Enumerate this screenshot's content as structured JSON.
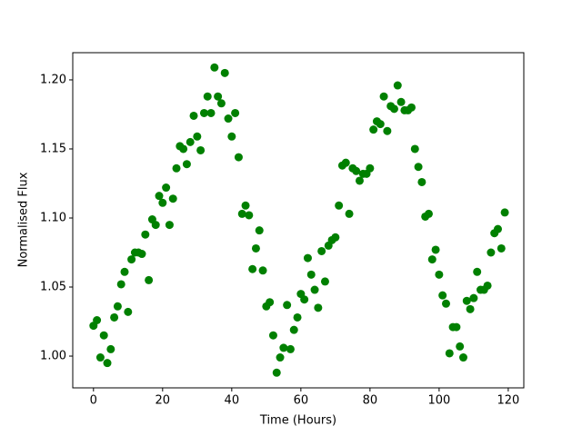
{
  "chart_data": {
    "type": "scatter",
    "xlabel": "Time (Hours)",
    "ylabel": "Normalised Flux",
    "color": "#008000",
    "x": [
      0,
      1,
      2,
      3,
      4,
      5,
      6,
      7,
      8,
      9,
      10,
      11,
      12,
      13,
      14,
      15,
      16,
      17,
      18,
      19,
      20,
      21,
      22,
      23,
      24,
      25,
      26,
      27,
      28,
      29,
      30,
      31,
      32,
      33,
      34,
      35,
      36,
      37,
      38,
      39,
      40,
      41,
      42,
      43,
      44,
      45,
      46,
      47,
      48,
      49,
      50,
      51,
      52,
      53,
      54,
      55,
      56,
      57,
      58,
      59,
      60,
      61,
      62,
      63,
      64,
      65,
      66,
      67,
      68,
      69,
      70,
      71,
      72,
      73,
      74,
      75,
      76,
      77,
      78,
      79,
      80,
      81,
      82,
      83,
      84,
      85,
      86,
      87,
      88,
      89,
      90,
      91,
      92,
      93,
      94,
      95,
      96,
      97,
      98,
      99,
      100,
      101,
      102,
      103,
      104,
      105,
      106,
      107,
      108,
      109,
      110,
      111,
      112,
      113,
      114,
      115,
      116,
      117,
      118,
      119
    ],
    "values": [
      1.022,
      1.026,
      0.999,
      1.015,
      0.995,
      1.005,
      1.028,
      1.036,
      1.052,
      1.061,
      1.032,
      1.07,
      1.075,
      1.075,
      1.074,
      1.088,
      1.055,
      1.099,
      1.095,
      1.116,
      1.111,
      1.122,
      1.095,
      1.114,
      1.136,
      1.152,
      1.15,
      1.139,
      1.155,
      1.174,
      1.159,
      1.149,
      1.176,
      1.188,
      1.176,
      1.209,
      1.188,
      1.183,
      1.205,
      1.172,
      1.159,
      1.176,
      1.144,
      1.103,
      1.109,
      1.102,
      1.063,
      1.078,
      1.091,
      1.062,
      1.036,
      1.039,
      1.015,
      0.988,
      0.999,
      1.006,
      1.037,
      1.005,
      1.019,
      1.028,
      1.045,
      1.041,
      1.071,
      1.059,
      1.048,
      1.035,
      1.076,
      1.054,
      1.08,
      1.084,
      1.086,
      1.109,
      1.138,
      1.14,
      1.103,
      1.136,
      1.134,
      1.127,
      1.132,
      1.132,
      1.136,
      1.164,
      1.17,
      1.168,
      1.188,
      1.163,
      1.181,
      1.179,
      1.196,
      1.184,
      1.178,
      1.178,
      1.18,
      1.15,
      1.137,
      1.126,
      1.101,
      1.103,
      1.07,
      1.077,
      1.059,
      1.044,
      1.038,
      1.002,
      1.021,
      1.021,
      1.007,
      0.999,
      1.04,
      1.034,
      1.042,
      1.061,
      1.048,
      1.048,
      1.051,
      1.075,
      1.089,
      1.092,
      1.078,
      1.104
    ],
    "xlim": [
      -6.0,
      124.5
    ],
    "ylim": [
      0.977,
      1.2197
    ],
    "xticks": [
      0,
      20,
      40,
      60,
      80,
      100,
      120
    ],
    "yticks": [
      {
        "value": 1.0,
        "label": "1.00"
      },
      1.05,
      {
        "value": 1.1,
        "label": "1.10"
      },
      1.15,
      {
        "value": 1.2,
        "label": "1.20"
      }
    ],
    "grid": false
  }
}
